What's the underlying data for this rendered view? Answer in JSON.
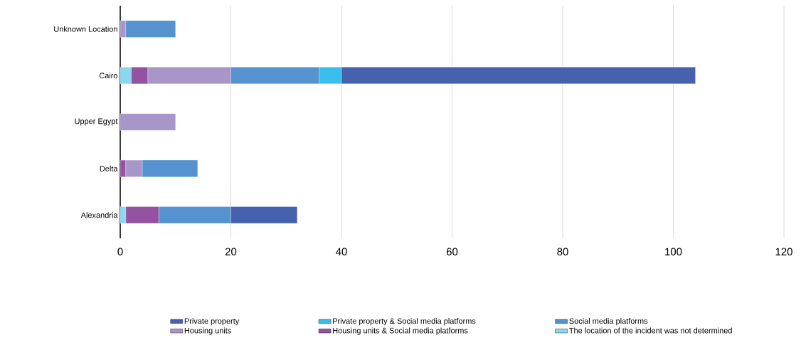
{
  "chart_data": {
    "type": "bar",
    "orientation": "horizontal",
    "stacked": true,
    "categories": [
      "Unknown Location",
      "Cairo",
      "Upper Egypt",
      "Delta",
      "Alexandria"
    ],
    "series": [
      {
        "name": "The location of the incident was not determined",
        "color": "#8cd6f0",
        "values": [
          null,
          2,
          null,
          null,
          1
        ]
      },
      {
        "name": "Housing units & Social media platforms",
        "color": "#9353a0",
        "values": [
          null,
          3,
          null,
          1,
          6
        ]
      },
      {
        "name": "Housing units",
        "color": "#a996c9",
        "values": [
          1,
          15,
          10,
          3,
          null
        ]
      },
      {
        "name": "Social media platforms",
        "color": "#5592cf",
        "values": [
          9,
          16,
          null,
          10,
          13
        ]
      },
      {
        "name": "Private property & Social media platforms",
        "color": "#39bfee",
        "values": [
          null,
          4,
          null,
          null,
          null
        ]
      },
      {
        "name": "Private property",
        "color": "#4661ad",
        "values": [
          null,
          64,
          null,
          null,
          12
        ]
      }
    ],
    "xlim": [
      0,
      120
    ],
    "xticks": [
      0,
      20,
      40,
      60,
      80,
      100,
      120
    ],
    "grid": "x",
    "legend": "bottom"
  }
}
